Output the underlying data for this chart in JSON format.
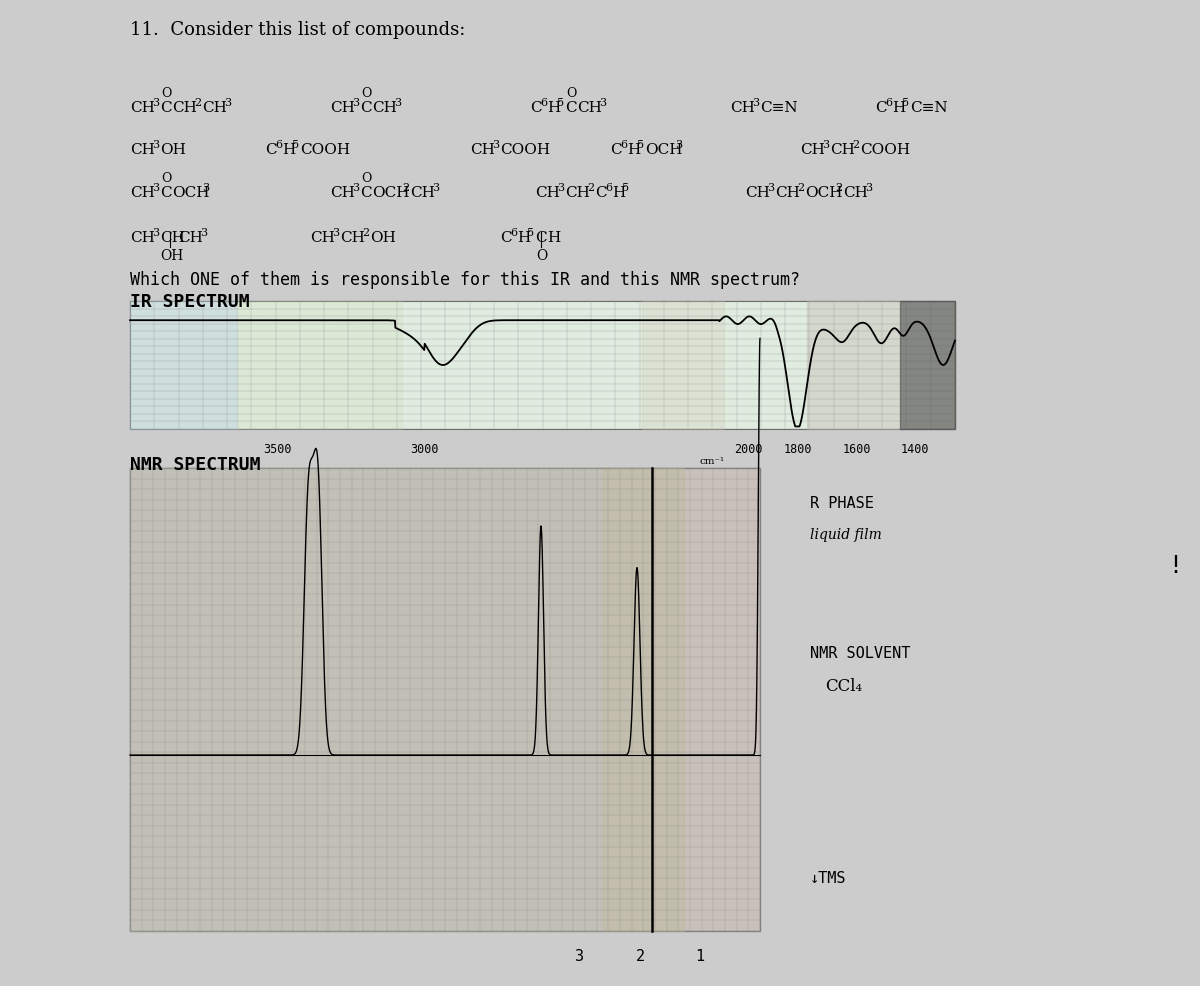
{
  "title": "11.  Consider this list of compounds:",
  "bg_color": "#cccccc",
  "question": "Which ONE of them is responsible for this IR and this NMR spectrum?",
  "ir_label": "IR SPECTRUM",
  "nmr_label": "NMR SPECTRUM",
  "r_phase_label": "R PHASE",
  "liquid_film_label": "liquid film",
  "nmr_solvent_label": "NMR SOLVENT",
  "ccl4_label": "CCl₄",
  "tms_label": "↓TMS"
}
